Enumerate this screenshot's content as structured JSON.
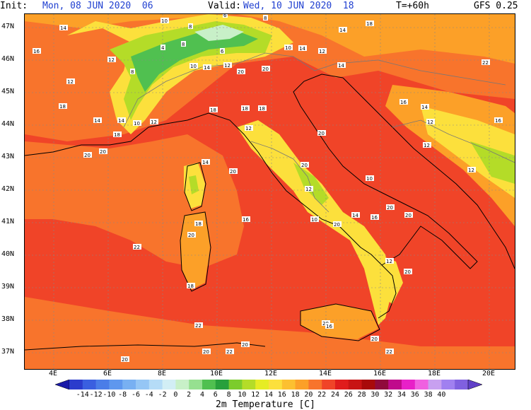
{
  "header": {
    "init_label": "Init:",
    "init_value": "Mon, 08 JUN 2020  06",
    "valid_label": "Valid:",
    "valid_value": "Wed, 10 JUN 2020  18",
    "forecast_step": "T=+60h",
    "model": "GFS 0.25"
  },
  "axes": {
    "lat_labels": [
      "47N",
      "46N",
      "45N",
      "44N",
      "43N",
      "42N",
      "41N",
      "40N",
      "39N",
      "38N",
      "37N"
    ],
    "lon_labels": [
      "4E",
      "6E",
      "8E",
      "10E",
      "12E",
      "14E",
      "16E",
      "18E",
      "20E"
    ]
  },
  "colorbar": {
    "title": "2m Temperature [C]",
    "tick_labels": [
      "-14",
      "-12",
      "-10",
      "-8",
      "-6",
      "-4",
      "-2",
      "0",
      "2",
      "4",
      "6",
      "8",
      "10",
      "12",
      "14",
      "16",
      "18",
      "20",
      "22",
      "24",
      "26",
      "28",
      "30",
      "32",
      "34",
      "36",
      "38",
      "40"
    ],
    "colors": [
      "#1a1aa8",
      "#2b3ccc",
      "#3a5fe0",
      "#4a7de8",
      "#5e97ee",
      "#78b0f2",
      "#95c6f5",
      "#b5dcf7",
      "#d2eef5",
      "#c8f0c8",
      "#96e090",
      "#50c050",
      "#28a03c",
      "#7ccc2c",
      "#b4dc28",
      "#e6ec24",
      "#fce03c",
      "#fcc030",
      "#fca028",
      "#f8742c",
      "#f04428",
      "#e01c1c",
      "#c81414",
      "#a80a0a",
      "#900a3c",
      "#c00a8c",
      "#e820c8",
      "#f060e0",
      "#c8a0f0",
      "#a080f0",
      "#8060e0",
      "#6040c8"
    ]
  },
  "map_labels": [
    {
      "t": "14"
    },
    {
      "t": "10"
    },
    {
      "t": "8"
    },
    {
      "t": "6"
    },
    {
      "t": "8"
    },
    {
      "t": "14"
    },
    {
      "t": "18"
    },
    {
      "t": "16"
    },
    {
      "t": "12"
    },
    {
      "t": "4"
    },
    {
      "t": "8"
    },
    {
      "t": "6"
    },
    {
      "t": "10"
    },
    {
      "t": "14"
    },
    {
      "t": "12"
    },
    {
      "t": "20"
    },
    {
      "t": "12"
    },
    {
      "t": "8"
    },
    {
      "t": "10"
    },
    {
      "t": "14"
    },
    {
      "t": "12"
    },
    {
      "t": "20"
    },
    {
      "t": "14"
    },
    {
      "t": "22"
    },
    {
      "t": "18"
    },
    {
      "t": "12"
    },
    {
      "t": "14"
    },
    {
      "t": "18"
    },
    {
      "t": "18"
    },
    {
      "t": "16"
    },
    {
      "t": "14"
    },
    {
      "t": "14"
    },
    {
      "t": "10"
    },
    {
      "t": "12"
    },
    {
      "t": "18"
    },
    {
      "t": "12"
    },
    {
      "t": "12"
    },
    {
      "t": "16"
    },
    {
      "t": "18"
    },
    {
      "t": "20"
    },
    {
      "t": "20"
    },
    {
      "t": "12"
    },
    {
      "t": "12"
    },
    {
      "t": "14"
    },
    {
      "t": "20"
    },
    {
      "t": "20"
    },
    {
      "t": "10"
    },
    {
      "t": "20"
    },
    {
      "t": "12"
    },
    {
      "t": "10"
    },
    {
      "t": "16"
    },
    {
      "t": "20"
    },
    {
      "t": "18"
    },
    {
      "t": "16"
    },
    {
      "t": "20"
    },
    {
      "t": "20"
    },
    {
      "t": "14"
    },
    {
      "t": "20"
    },
    {
      "t": "22"
    },
    {
      "t": "12"
    },
    {
      "t": "20"
    },
    {
      "t": "18"
    },
    {
      "t": "22"
    },
    {
      "t": "20"
    },
    {
      "t": "16"
    },
    {
      "t": "20"
    },
    {
      "t": "20"
    },
    {
      "t": "20"
    },
    {
      "t": "22"
    },
    {
      "t": "20"
    },
    {
      "t": "22"
    }
  ]
}
